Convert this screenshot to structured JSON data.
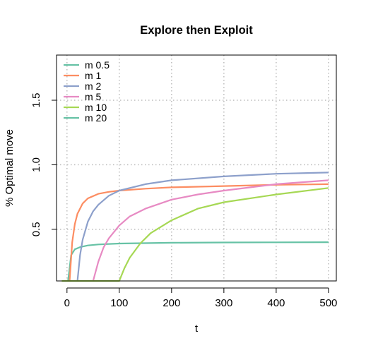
{
  "chart_data": {
    "type": "line",
    "title": "Explore then Exploit",
    "xlabel": "t",
    "ylabel": "% Optimal move",
    "xlim": [
      -20,
      515
    ],
    "ylim": [
      0.1,
      1.85
    ],
    "xticks": [
      0,
      100,
      200,
      300,
      400,
      500
    ],
    "xtick_labels": [
      "0",
      "100",
      "200",
      "300",
      "400",
      "500"
    ],
    "yticks": [
      0.5,
      1.0,
      1.5
    ],
    "ytick_labels": [
      "0.5",
      "1.0",
      "1.5"
    ],
    "grid": "dotted",
    "legend_position": "top-left",
    "series": [
      {
        "name": "m 0.5",
        "color": "#66c2a5",
        "x": [
          2,
          8,
          15,
          25,
          40,
          60,
          100,
          200,
          300,
          400,
          500
        ],
        "y": [
          0.1,
          0.3,
          0.345,
          0.362,
          0.375,
          0.383,
          0.39,
          0.396,
          0.398,
          0.399,
          0.4
        ]
      },
      {
        "name": "m 1",
        "color": "#fc8d62",
        "x": [
          5,
          10,
          15,
          20,
          30,
          40,
          60,
          80,
          100,
          150,
          200,
          300,
          400,
          500
        ],
        "y": [
          0.1,
          0.4,
          0.54,
          0.62,
          0.7,
          0.74,
          0.775,
          0.79,
          0.8,
          0.815,
          0.825,
          0.835,
          0.845,
          0.85
        ]
      },
      {
        "name": "m 2",
        "color": "#8da0cb",
        "x": [
          20,
          25,
          30,
          40,
          50,
          60,
          80,
          100,
          150,
          200,
          300,
          400,
          500
        ],
        "y": [
          0.1,
          0.3,
          0.42,
          0.56,
          0.64,
          0.69,
          0.76,
          0.8,
          0.85,
          0.88,
          0.91,
          0.93,
          0.94
        ]
      },
      {
        "name": "m 5",
        "color": "#e78ac3",
        "x": [
          50,
          60,
          70,
          80,
          100,
          120,
          150,
          200,
          250,
          300,
          400,
          500
        ],
        "y": [
          0.1,
          0.25,
          0.36,
          0.43,
          0.53,
          0.6,
          0.66,
          0.73,
          0.77,
          0.8,
          0.85,
          0.88
        ]
      },
      {
        "name": "m 10",
        "color": "#a6d854",
        "x": [
          -10,
          100,
          110,
          120,
          140,
          160,
          200,
          250,
          300,
          400,
          500
        ],
        "y": [
          0.1,
          0.1,
          0.2,
          0.28,
          0.39,
          0.47,
          0.57,
          0.66,
          0.71,
          0.77,
          0.82
        ]
      },
      {
        "name": "m 20",
        "color": "#66c2a5",
        "x": [],
        "y": []
      }
    ]
  }
}
